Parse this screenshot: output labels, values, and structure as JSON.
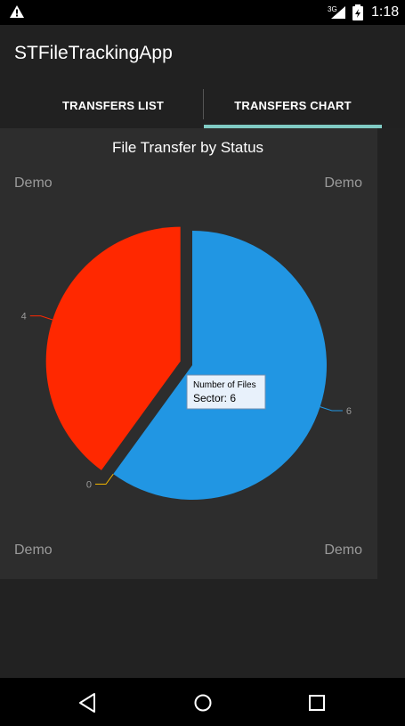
{
  "status_bar": {
    "time": "1:18",
    "network": "3G",
    "icons": [
      "warning-icon",
      "signal-icon",
      "battery-icon"
    ]
  },
  "app": {
    "title": "STFileTrackingApp"
  },
  "tabs": [
    {
      "label": "TRANSFERS LIST",
      "selected": false
    },
    {
      "label": "TRANSFERS CHART",
      "selected": true
    }
  ],
  "chart_data": {
    "type": "pie",
    "title": "File Transfer by Status",
    "categories": [
      "",
      "",
      ""
    ],
    "values": [
      6,
      0,
      4
    ],
    "colors": [
      "#2196e3",
      "#f0b400",
      "#ff2800"
    ],
    "exploded_index": 2,
    "watermark": [
      "Demo",
      "Demo",
      "Demo",
      "Demo"
    ],
    "tooltip": {
      "title": "Number of Files",
      "text": "Sector: 6"
    }
  },
  "nav": {
    "buttons": [
      "back-icon",
      "home-icon",
      "recent-apps-icon"
    ]
  }
}
